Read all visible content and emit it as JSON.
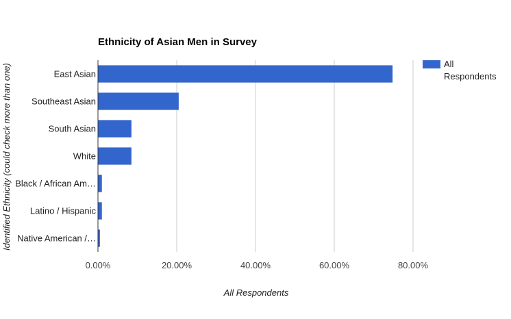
{
  "chart_data": {
    "type": "bar",
    "orientation": "horizontal",
    "title": "Ethnicity of Asian Men in Survey",
    "xlabel": "All Respondents",
    "ylabel": "Identified Ethnicity (could check more than one)",
    "categories": [
      "East Asian",
      "Southeast Asian",
      "South Asian",
      "White",
      "Black / African Am…",
      "Latino / Hispanic",
      "Native American /…"
    ],
    "series": [
      {
        "name": "All Respondents",
        "values": [
          74.8,
          20.5,
          8.5,
          8.5,
          1.0,
          1.0,
          0.5
        ]
      }
    ],
    "xticks": [
      "0.00%",
      "20.00%",
      "40.00%",
      "60.00%",
      "80.00%"
    ],
    "xlim": [
      0,
      80
    ],
    "grid": true,
    "legend": {
      "position": "right",
      "lines": [
        "All",
        "Respondents"
      ]
    },
    "colors": {
      "bar": "#3366cc",
      "grid": "#cccccc",
      "axis": "#333333"
    }
  }
}
